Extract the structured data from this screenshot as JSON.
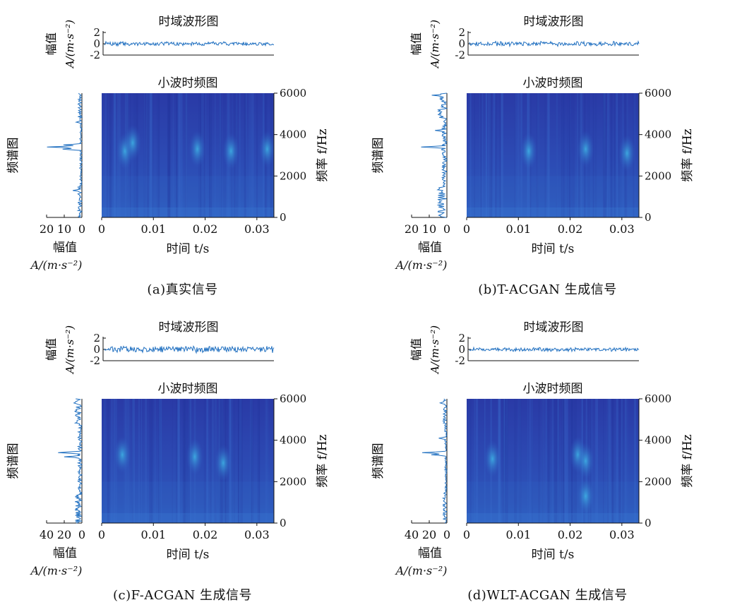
{
  "chart_data": [
    {
      "id": "a",
      "type": "heatmap",
      "caption": "(a)真实信号",
      "time_title": "时域波形图",
      "time_yticks": [
        "2",
        "0",
        "-2"
      ],
      "time_ylim": [
        -2,
        2
      ],
      "time_ylabel_top": "A/(m·s⁻²)",
      "time_ylabel_name": "幅值",
      "cwt_title": "小波时频图",
      "spectrum_label": "频谱图",
      "spectrum_xticks": [
        20,
        10,
        0
      ],
      "spectrum_xmax": 20,
      "spectrum_xlabel_name": "幅值",
      "spectrum_xlabel_unit": "A/(m·s⁻²)",
      "freq_yticks": [
        0,
        2000,
        4000,
        6000
      ],
      "freq_ylim": [
        0,
        6000
      ],
      "freq_ylabel": "频率 f/Hz",
      "time_xticks": [
        "0",
        "0.01",
        "0.02",
        "0.03"
      ],
      "time_xtick_values": [
        0,
        0.01,
        0.02,
        0.03
      ],
      "time_xlim": [
        0,
        0.0333
      ],
      "time_xlabel": "时间 t/s",
      "spectrum_peaks": [
        {
          "f": 3400,
          "a": 20
        },
        {
          "f": 3300,
          "a": 14
        },
        {
          "f": 3500,
          "a": 12
        },
        {
          "f": 1300,
          "a": 6
        },
        {
          "f": 4600,
          "a": 4
        }
      ],
      "spectrum_noise": 2.5,
      "bright_spots": [
        {
          "t": 0.0045,
          "f": 3200
        },
        {
          "t": 0.006,
          "f": 3600
        },
        {
          "t": 0.0185,
          "f": 3300
        },
        {
          "t": 0.025,
          "f": 3200
        },
        {
          "t": 0.032,
          "f": 3300
        }
      ],
      "waveform_amp": 0.3
    },
    {
      "id": "b",
      "type": "heatmap",
      "caption": "(b)T-ACGAN 生成信号",
      "time_title": "时域波形图",
      "time_yticks": [
        "2",
        "0",
        "-2"
      ],
      "time_ylim": [
        -2,
        2
      ],
      "time_ylabel_top": "A/(m·s⁻²)",
      "time_ylabel_name": "幅值",
      "cwt_title": "小波时频图",
      "spectrum_label": "频谱图",
      "spectrum_xticks": [
        20,
        10,
        0
      ],
      "spectrum_xmax": 20,
      "spectrum_xlabel_name": "幅值",
      "spectrum_xlabel_unit": "A/(m·s⁻²)",
      "freq_yticks": [
        0,
        2000,
        4000,
        6000
      ],
      "freq_ylim": [
        0,
        6000
      ],
      "freq_ylabel": "频率 f/Hz",
      "time_xticks": [
        "0",
        "0.01",
        "0.02",
        "0.03"
      ],
      "time_xtick_values": [
        0,
        0.01,
        0.02,
        0.03
      ],
      "time_xlim": [
        0,
        0.0333
      ],
      "time_xlabel": "时间 t/s",
      "spectrum_peaks": [
        {
          "f": 3400,
          "a": 18
        },
        {
          "f": 5900,
          "a": 9
        },
        {
          "f": 4200,
          "a": 8
        }
      ],
      "spectrum_noise": 6,
      "bright_spots": [
        {
          "t": 0.012,
          "f": 3200
        },
        {
          "t": 0.023,
          "f": 3300
        },
        {
          "t": 0.031,
          "f": 3100
        }
      ],
      "waveform_amp": 0.35
    },
    {
      "id": "c",
      "type": "heatmap",
      "caption": "(c)F-ACGAN 生成信号",
      "time_title": "时域波形图",
      "time_yticks": [
        "2",
        "0",
        "-2"
      ],
      "time_ylim": [
        -2,
        2
      ],
      "time_ylabel_top": "A/(m·s⁻²)",
      "time_ylabel_name": "幅值",
      "cwt_title": "小波时频图",
      "spectrum_label": "频谱图",
      "spectrum_xticks": [
        40,
        20,
        0
      ],
      "spectrum_xmax": 40,
      "spectrum_xlabel_name": "幅值",
      "spectrum_xlabel_unit": "A/(m·s⁻²)",
      "freq_yticks": [
        0,
        2000,
        4000,
        6000
      ],
      "freq_ylim": [
        0,
        6000
      ],
      "freq_ylabel": "频率 f/Hz",
      "time_xticks": [
        "0",
        "0.01",
        "0.02",
        "0.03"
      ],
      "time_xtick_values": [
        0,
        0.01,
        0.02,
        0.03
      ],
      "time_xlim": [
        0,
        0.0333
      ],
      "time_xlabel": "时间 t/s",
      "spectrum_peaks": [
        {
          "f": 3400,
          "a": 34
        },
        {
          "f": 3200,
          "a": 22
        },
        {
          "f": 5800,
          "a": 12
        }
      ],
      "spectrum_noise": 9,
      "bright_spots": [
        {
          "t": 0.004,
          "f": 3300
        },
        {
          "t": 0.018,
          "f": 3200
        },
        {
          "t": 0.0235,
          "f": 2900
        }
      ],
      "waveform_amp": 0.5
    },
    {
      "id": "d",
      "type": "heatmap",
      "caption": "(d)WLT-ACGAN 生成信号",
      "time_title": "时域波形图",
      "time_yticks": [
        "2",
        "0",
        "-2"
      ],
      "time_ylim": [
        -2,
        2
      ],
      "time_ylabel_top": "A/(m·s⁻²)",
      "time_ylabel_name": "幅值",
      "cwt_title": "小波时频图",
      "spectrum_label": "频谱图",
      "spectrum_xticks": [
        40,
        20,
        0
      ],
      "spectrum_xmax": 40,
      "spectrum_xlabel_name": "幅值",
      "spectrum_xlabel_unit": "A/(m·s⁻²)",
      "freq_yticks": [
        0,
        2000,
        4000,
        6000
      ],
      "freq_ylim": [
        0,
        6000
      ],
      "freq_ylabel": "频率 f/Hz",
      "time_xticks": [
        "0",
        "0.01",
        "0.02",
        "0.03"
      ],
      "time_xtick_values": [
        0,
        0.01,
        0.02,
        0.03
      ],
      "time_xlim": [
        0,
        0.0333
      ],
      "time_xlabel": "时间 t/s",
      "spectrum_peaks": [
        {
          "f": 3400,
          "a": 30
        },
        {
          "f": 3300,
          "a": 20
        },
        {
          "f": 4100,
          "a": 12
        },
        {
          "f": 5800,
          "a": 10
        }
      ],
      "spectrum_noise": 5,
      "bright_spots": [
        {
          "t": 0.005,
          "f": 3100
        },
        {
          "t": 0.0215,
          "f": 3300
        },
        {
          "t": 0.023,
          "f": 3000
        },
        {
          "t": 0.023,
          "f": 1300
        }
      ],
      "waveform_amp": 0.3
    }
  ]
}
